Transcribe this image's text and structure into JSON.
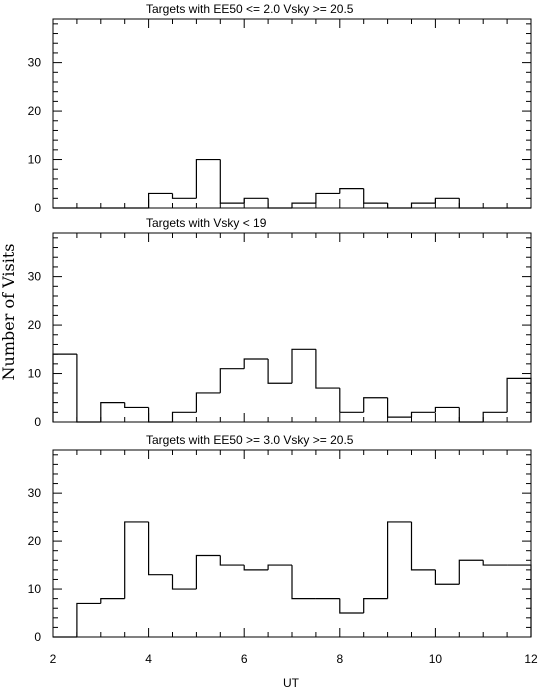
{
  "figure": {
    "ylabel": "Number of Visits",
    "xlabel": "UT",
    "xlim": [
      2,
      12
    ],
    "x_ticks": [
      "2",
      "4",
      "6",
      "8",
      "10",
      "12"
    ],
    "y_ticks": [
      "0",
      "10",
      "20",
      "30"
    ]
  },
  "chart_data": [
    {
      "type": "bar",
      "title": "Targets with EE50 <= 2.0 Vsky >= 20.5",
      "xlim": [
        2,
        12
      ],
      "ylim": [
        0,
        39
      ],
      "bin_width": 0.5,
      "bin_starts": [
        2.0,
        2.5,
        3.0,
        3.5,
        4.0,
        4.5,
        5.0,
        5.5,
        6.0,
        6.5,
        7.0,
        7.5,
        8.0,
        8.5,
        9.0,
        9.5,
        10.0,
        10.5,
        11.0,
        11.5
      ],
      "values": [
        0,
        0,
        0,
        0,
        3,
        2,
        10,
        1,
        2,
        0,
        1,
        3,
        4,
        1,
        0,
        1,
        2,
        0,
        0,
        0
      ]
    },
    {
      "type": "bar",
      "title": "Targets with Vsky < 19",
      "xlim": [
        2,
        12
      ],
      "ylim": [
        0,
        39
      ],
      "bin_width": 0.5,
      "bin_starts": [
        2.0,
        2.5,
        3.0,
        3.5,
        4.0,
        4.5,
        5.0,
        5.5,
        6.0,
        6.5,
        7.0,
        7.5,
        8.0,
        8.5,
        9.0,
        9.5,
        10.0,
        10.5,
        11.0,
        11.5
      ],
      "values": [
        14,
        0,
        4,
        3,
        0,
        2,
        6,
        11,
        13,
        8,
        15,
        7,
        2,
        5,
        1,
        2,
        3,
        0,
        2,
        9
      ]
    },
    {
      "type": "bar",
      "title": "Targets with EE50 >= 3.0 Vsky >= 20.5",
      "xlim": [
        2,
        12
      ],
      "ylim": [
        0,
        39
      ],
      "bin_width": 0.5,
      "bin_starts": [
        2.0,
        2.5,
        3.0,
        3.5,
        4.0,
        4.5,
        5.0,
        5.5,
        6.0,
        6.5,
        7.0,
        7.5,
        8.0,
        8.5,
        9.0,
        9.5,
        10.0,
        10.5,
        11.0,
        11.5
      ],
      "values": [
        0,
        7,
        8,
        24,
        13,
        10,
        17,
        15,
        14,
        15,
        8,
        8,
        5,
        8,
        24,
        14,
        11,
        16,
        15,
        15
      ]
    }
  ]
}
